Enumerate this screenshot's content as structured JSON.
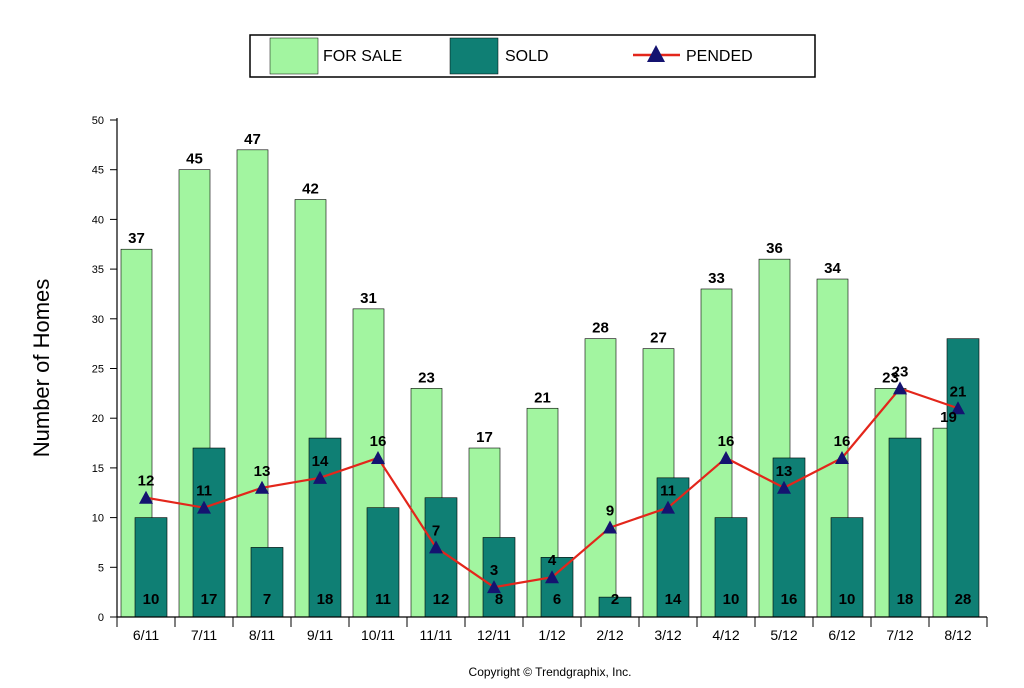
{
  "chart_data": {
    "type": "bar",
    "categories": [
      "6/11",
      "7/11",
      "8/11",
      "9/11",
      "10/11",
      "11/11",
      "12/11",
      "1/12",
      "2/12",
      "3/12",
      "4/12",
      "5/12",
      "6/12",
      "7/12",
      "8/12"
    ],
    "series": [
      {
        "name": "FOR SALE",
        "type": "bar",
        "color": "#a2f5a0",
        "values": [
          37,
          45,
          47,
          42,
          31,
          23,
          17,
          21,
          28,
          27,
          33,
          36,
          34,
          23,
          19
        ]
      },
      {
        "name": "SOLD",
        "type": "bar",
        "color": "#0f7f74",
        "values": [
          10,
          17,
          7,
          18,
          11,
          12,
          8,
          6,
          2,
          14,
          10,
          16,
          10,
          18,
          28
        ]
      },
      {
        "name": "PENDED",
        "type": "line",
        "color": "#e3261b",
        "marker_color": "#141370",
        "values": [
          12,
          11,
          13,
          14,
          16,
          7,
          3,
          4,
          9,
          11,
          16,
          13,
          16,
          23,
          21
        ]
      }
    ],
    "ylabel": "Number of Homes",
    "ylim": [
      0,
      50
    ],
    "yticks": [
      0,
      5,
      10,
      15,
      20,
      25,
      30,
      35,
      40,
      45,
      50
    ],
    "legend": "top-center",
    "grid": false,
    "footer": "Copyright © Trendgraphix, Inc."
  }
}
